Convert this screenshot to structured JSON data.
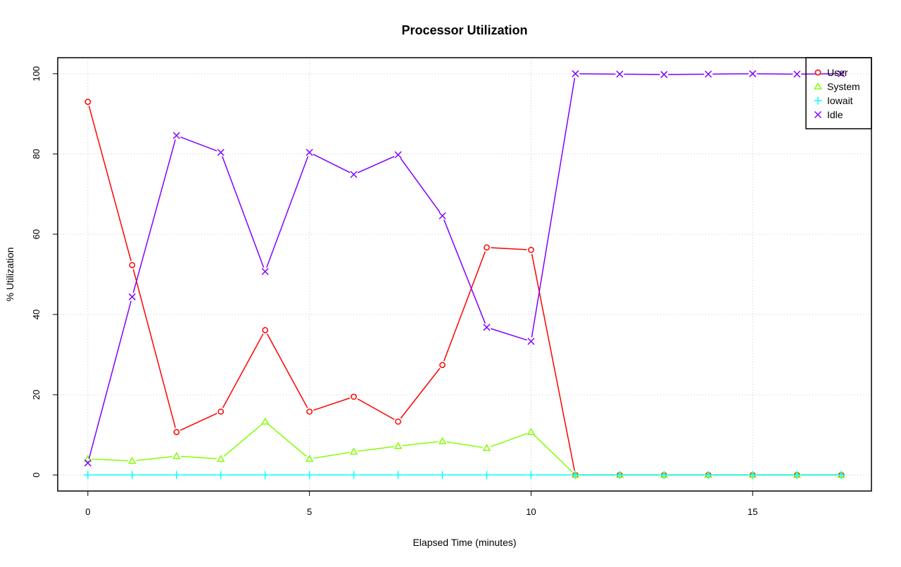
{
  "chart_data": {
    "type": "line",
    "title": "Processor Utilization",
    "xlabel": "Elapsed Time (minutes)",
    "ylabel": "% Utilization",
    "x": [
      0,
      1,
      2,
      3,
      4,
      5,
      6,
      7,
      8,
      9,
      10,
      11,
      12,
      13,
      14,
      15,
      16,
      17
    ],
    "xlim": [
      -0.68,
      17.68
    ],
    "ylim": [
      -4,
      104
    ],
    "xticks": [
      0,
      5,
      10,
      15
    ],
    "yticks": [
      0,
      20,
      40,
      60,
      80,
      100
    ],
    "grid": true,
    "legend_position": "top-right",
    "series": [
      {
        "name": "User",
        "color": "#ff0000",
        "marker": "circle",
        "values": [
          93.0,
          52.3,
          10.7,
          15.8,
          36.1,
          15.8,
          19.5,
          13.3,
          27.4,
          56.7,
          56.1,
          0,
          0,
          0,
          0,
          0,
          0,
          0
        ]
      },
      {
        "name": "System",
        "color": "#80ff00",
        "marker": "triangle",
        "values": [
          4.0,
          3.5,
          4.7,
          4.0,
          13.3,
          4.0,
          5.8,
          7.2,
          8.4,
          6.7,
          10.7,
          0,
          0,
          0,
          0,
          0,
          0,
          0
        ]
      },
      {
        "name": "Iowait",
        "color": "#00ffff",
        "marker": "plus",
        "values": [
          0,
          0,
          0,
          0,
          0,
          0,
          0,
          0,
          0,
          0,
          0,
          0,
          0,
          0,
          0,
          0,
          0,
          0
        ]
      },
      {
        "name": "Idle",
        "color": "#8000ff",
        "marker": "x",
        "values": [
          3.0,
          44.4,
          84.6,
          80.4,
          50.7,
          80.4,
          74.9,
          79.8,
          64.6,
          36.8,
          33.3,
          100,
          99.9,
          99.8,
          99.9,
          100,
          99.9,
          100
        ]
      }
    ]
  }
}
